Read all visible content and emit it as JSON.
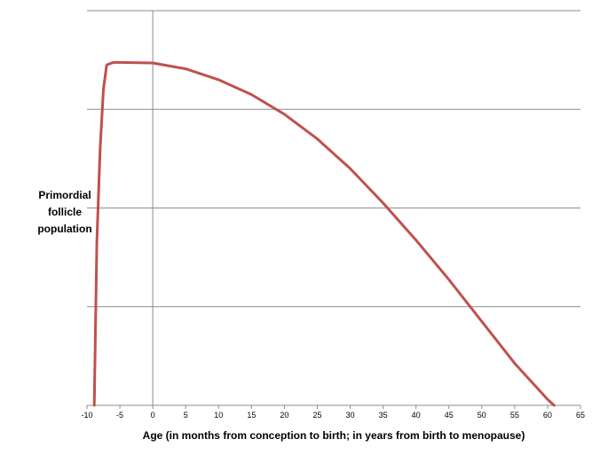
{
  "chart_data": {
    "type": "line",
    "title": "",
    "xlabel": "Age (in months from conception to birth; in years from birth to menopause)",
    "ylabel_lines": [
      "Primordial",
      "follicle",
      "population"
    ],
    "xlim": [
      -10,
      65
    ],
    "x_ticks": [
      -10,
      -5,
      0,
      5,
      10,
      15,
      20,
      25,
      30,
      35,
      40,
      45,
      50,
      55,
      60,
      65
    ],
    "ylim": [
      0,
      8
    ],
    "y_gridlines": [
      2,
      4,
      6,
      8
    ],
    "grid": true,
    "legend": "none",
    "series": [
      {
        "color": "#c0504d",
        "x": [
          -8.9,
          -8.5,
          -8,
          -7.5,
          -7,
          -6,
          -5,
          0,
          5,
          10,
          15,
          20,
          25,
          30,
          35,
          40,
          45,
          50,
          55,
          60,
          61
        ],
        "y": [
          0,
          3.3,
          5.2,
          6.4,
          6.9,
          6.95,
          6.95,
          6.94,
          6.82,
          6.6,
          6.3,
          5.9,
          5.4,
          4.8,
          4.1,
          3.35,
          2.55,
          1.7,
          0.85,
          0.12,
          0
        ]
      }
    ]
  }
}
